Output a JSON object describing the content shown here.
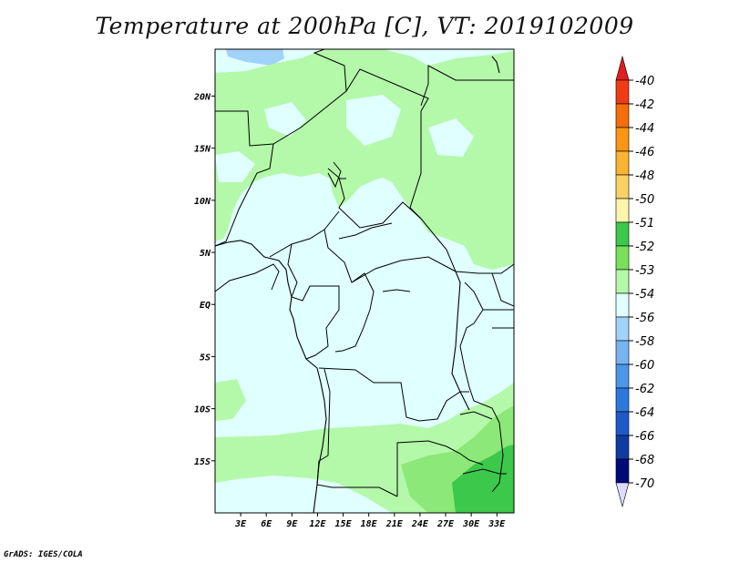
{
  "title": "Temperature at 200hPa [C], VT: 2019102009",
  "credit": "GrADS: IGES/COLA",
  "colors": {
    "background_field": "#e0ffff",
    "green_light": "#b4f8aa",
    "green_mid": "#8ce878",
    "green_dark": "#3cc84a",
    "blue_light": "#a0d2fa",
    "border": "#000000"
  },
  "chart_data": {
    "type": "heatmap",
    "lon_ticks": [
      "3E",
      "6E",
      "9E",
      "12E",
      "15E",
      "18E",
      "21E",
      "24E",
      "27E",
      "30E",
      "33E"
    ],
    "lat_ticks": [
      "20N",
      "15N",
      "10N",
      "5N",
      "EQ",
      "5S",
      "10S",
      "15S"
    ],
    "lon_range": [
      0,
      35
    ],
    "lat_range": [
      -20,
      24.5
    ],
    "colorbar": {
      "labels": [
        "-40",
        "-42",
        "-44",
        "-46",
        "-48",
        "-50",
        "-51",
        "-52",
        "-53",
        "-54",
        "-56",
        "-58",
        "-60",
        "-62",
        "-64",
        "-66",
        "-68",
        "-70"
      ],
      "colors": [
        "#e11e1e",
        "#f03c14",
        "#f56e0a",
        "#fa9614",
        "#fab432",
        "#fad264",
        "#fff5aa",
        "#3cc84a",
        "#78e05a",
        "#b4f8aa",
        "#e0ffff",
        "#a0d2fa",
        "#78b4f0",
        "#4b96e6",
        "#2d78dc",
        "#1e5ac8",
        "#0f3ca0",
        "#000a78",
        "#dcdcff"
      ]
    }
  }
}
